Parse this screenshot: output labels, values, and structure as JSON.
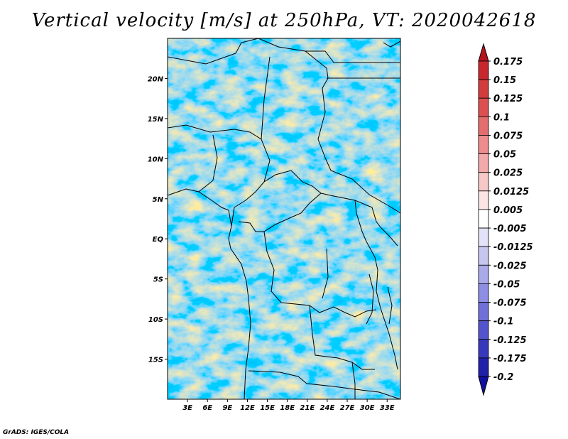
{
  "title": "Vertical velocity [m/s] at 250hPa, VT: 2020042618",
  "credit": "GrADS: IGES/COLA",
  "map": {
    "lon_range": [
      0,
      35
    ],
    "lat_range": [
      -20,
      25
    ],
    "y_ticks": [
      "20N",
      "15N",
      "10N",
      "5N",
      "EQ",
      "5S",
      "10S",
      "15S"
    ],
    "y_tick_values": [
      20,
      15,
      10,
      5,
      0,
      -5,
      -10,
      -15
    ],
    "x_ticks": [
      "3E",
      "6E",
      "9E",
      "12E",
      "15E",
      "18E",
      "21E",
      "24E",
      "27E",
      "30E",
      "33E"
    ],
    "x_tick_values": [
      3,
      6,
      9,
      12,
      15,
      18,
      21,
      24,
      27,
      30,
      33
    ]
  },
  "colorbar": {
    "labels": [
      "0.175",
      "0.15",
      "0.125",
      "0.1",
      "0.075",
      "0.05",
      "0.025",
      "0.0125",
      "0.005",
      "-0.005",
      "-0.0125",
      "-0.025",
      "-0.05",
      "-0.075",
      "-0.1",
      "-0.125",
      "-0.175",
      "-0.2"
    ],
    "colors": [
      "#b4141e",
      "#c8282d",
      "#d23c3c",
      "#dc5050",
      "#e46e6e",
      "#ec8c8c",
      "#f2aaaa",
      "#f7c8c8",
      "#fbe4e4",
      "#ffffff",
      "#e2e2f8",
      "#c6c6f0",
      "#aaaaea",
      "#8e8ee2",
      "#7070d8",
      "#5454cc",
      "#3838bc",
      "#2020a8",
      "#1010a0"
    ]
  }
}
